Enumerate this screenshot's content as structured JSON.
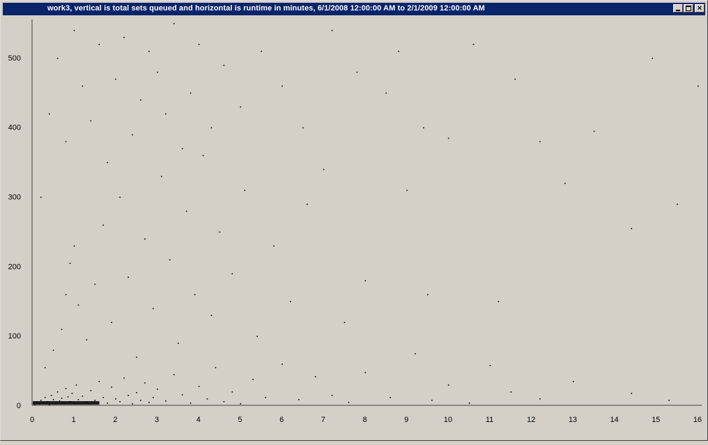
{
  "window": {
    "title": "work3, vertical is total sets queued and horizontal is runtime in minutes, 6/1/2008 12:00:00 AM to 2/1/2009 12:00:00 AM",
    "controls": {
      "minimize_icon": "minimize-icon",
      "maximize_icon": "maximize-icon",
      "close_icon": "close-icon"
    }
  },
  "colors": {
    "titlebar": "#0a246a",
    "background": "#d4d0c8",
    "points": "#000000",
    "axis": "#404040"
  },
  "chart_data": {
    "type": "scatter",
    "title": "",
    "xlabel": "",
    "ylabel": "",
    "xlim": [
      0,
      16
    ],
    "ylim": [
      0,
      555
    ],
    "x_ticks": [
      "0",
      "1",
      "2",
      "3",
      "4",
      "5",
      "6",
      "7",
      "8",
      "9",
      "10",
      "11",
      "12",
      "13",
      "14",
      "15",
      "16"
    ],
    "y_ticks": [
      "0",
      "100",
      "200",
      "300",
      "400",
      "500"
    ],
    "grid": false,
    "legend": "none",
    "series": [
      {
        "points": [
          [
            0.05,
            2
          ],
          [
            0.1,
            5
          ],
          [
            0.15,
            3
          ],
          [
            0.2,
            8
          ],
          [
            0.25,
            4
          ],
          [
            0.3,
            12
          ],
          [
            0.35,
            6
          ],
          [
            0.4,
            2
          ],
          [
            0.45,
            15
          ],
          [
            0.5,
            9
          ],
          [
            0.55,
            3
          ],
          [
            0.6,
            20
          ],
          [
            0.65,
            7
          ],
          [
            0.7,
            11
          ],
          [
            0.75,
            4
          ],
          [
            0.8,
            25
          ],
          [
            0.85,
            13
          ],
          [
            0.9,
            6
          ],
          [
            0.95,
            18
          ],
          [
            1.0,
            3
          ],
          [
            1.05,
            30
          ],
          [
            1.1,
            9
          ],
          [
            1.2,
            14
          ],
          [
            1.3,
            5
          ],
          [
            1.4,
            22
          ],
          [
            1.5,
            8
          ],
          [
            1.6,
            35
          ],
          [
            1.7,
            12
          ],
          [
            1.8,
            4
          ],
          [
            1.9,
            27
          ],
          [
            2.0,
            10
          ],
          [
            2.1,
            6
          ],
          [
            2.2,
            40
          ],
          [
            2.3,
            15
          ],
          [
            2.4,
            3
          ],
          [
            2.5,
            19
          ],
          [
            2.6,
            8
          ],
          [
            2.7,
            33
          ],
          [
            2.8,
            5
          ],
          [
            2.9,
            12
          ],
          [
            3.0,
            24
          ],
          [
            3.2,
            7
          ],
          [
            3.4,
            45
          ],
          [
            3.6,
            16
          ],
          [
            3.8,
            4
          ],
          [
            4.0,
            28
          ],
          [
            4.2,
            10
          ],
          [
            4.4,
            55
          ],
          [
            4.6,
            6
          ],
          [
            4.8,
            20
          ],
          [
            5.0,
            3
          ],
          [
            5.3,
            38
          ],
          [
            5.6,
            12
          ],
          [
            6.0,
            60
          ],
          [
            6.4,
            9
          ],
          [
            6.8,
            42
          ],
          [
            7.2,
            15
          ],
          [
            7.6,
            5
          ],
          [
            8.0,
            48
          ],
          [
            8.6,
            12
          ],
          [
            9.2,
            75
          ],
          [
            9.6,
            8
          ],
          [
            10.0,
            30
          ],
          [
            10.5,
            4
          ],
          [
            11.0,
            58
          ],
          [
            11.5,
            20
          ],
          [
            12.2,
            10
          ],
          [
            13.0,
            35
          ],
          [
            14.4,
            18
          ],
          [
            15.3,
            8
          ],
          [
            0.3,
            55
          ],
          [
            0.5,
            80
          ],
          [
            0.7,
            110
          ],
          [
            0.8,
            160
          ],
          [
            0.9,
            205
          ],
          [
            1.0,
            230
          ],
          [
            1.1,
            145
          ],
          [
            1.3,
            95
          ],
          [
            1.5,
            175
          ],
          [
            1.7,
            260
          ],
          [
            1.9,
            120
          ],
          [
            2.1,
            300
          ],
          [
            2.3,
            185
          ],
          [
            2.5,
            70
          ],
          [
            2.7,
            240
          ],
          [
            2.9,
            140
          ],
          [
            3.1,
            330
          ],
          [
            3.3,
            210
          ],
          [
            3.5,
            90
          ],
          [
            3.7,
            280
          ],
          [
            3.9,
            160
          ],
          [
            4.1,
            360
          ],
          [
            4.3,
            130
          ],
          [
            4.5,
            250
          ],
          [
            4.8,
            190
          ],
          [
            5.1,
            310
          ],
          [
            5.4,
            100
          ],
          [
            5.8,
            230
          ],
          [
            6.2,
            150
          ],
          [
            6.6,
            290
          ],
          [
            7.0,
            340
          ],
          [
            7.5,
            120
          ],
          [
            8.0,
            180
          ],
          [
            8.5,
            450
          ],
          [
            9.0,
            310
          ],
          [
            9.5,
            160
          ],
          [
            10.0,
            385
          ],
          [
            10.6,
            520
          ],
          [
            11.2,
            150
          ],
          [
            11.6,
            470
          ],
          [
            12.2,
            380
          ],
          [
            12.8,
            320
          ],
          [
            13.5,
            395
          ],
          [
            14.4,
            255
          ],
          [
            14.9,
            500
          ],
          [
            15.5,
            290
          ],
          [
            16.0,
            460
          ],
          [
            0.2,
            300
          ],
          [
            0.4,
            420
          ],
          [
            0.6,
            500
          ],
          [
            0.8,
            380
          ],
          [
            1.0,
            540
          ],
          [
            1.2,
            460
          ],
          [
            1.4,
            410
          ],
          [
            1.6,
            520
          ],
          [
            1.8,
            350
          ],
          [
            2.0,
            470
          ],
          [
            2.2,
            530
          ],
          [
            2.4,
            390
          ],
          [
            2.6,
            440
          ],
          [
            2.8,
            510
          ],
          [
            3.0,
            480
          ],
          [
            3.2,
            420
          ],
          [
            3.4,
            550
          ],
          [
            3.6,
            370
          ],
          [
            3.8,
            450
          ],
          [
            4.0,
            520
          ],
          [
            4.3,
            400
          ],
          [
            4.6,
            490
          ],
          [
            5.0,
            430
          ],
          [
            5.5,
            510
          ],
          [
            6.0,
            460
          ],
          [
            6.5,
            400
          ],
          [
            7.2,
            540
          ],
          [
            7.8,
            480
          ],
          [
            8.8,
            510
          ],
          [
            9.4,
            400
          ]
        ]
      }
    ]
  }
}
